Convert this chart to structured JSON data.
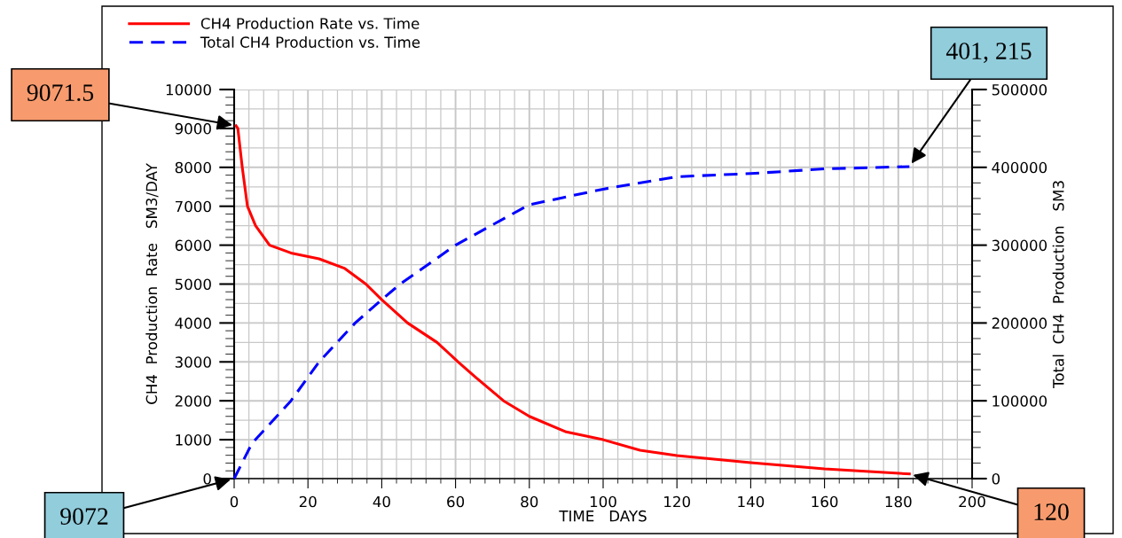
{
  "chart_data": {
    "type": "line",
    "xlabel": "TIME   DAYS",
    "ylabel": "CH4  Production  Rate   SM3/DAY",
    "y2label": "Total  CH4  Production   SM3",
    "xlim": [
      0,
      200
    ],
    "xticks": [
      0,
      20,
      40,
      60,
      80,
      100,
      120,
      140,
      160,
      180,
      200
    ],
    "ylim": [
      0,
      10000
    ],
    "yticks": [
      0,
      1000,
      2000,
      3000,
      4000,
      5000,
      6000,
      7000,
      8000,
      9000,
      10000
    ],
    "y2lim": [
      0,
      500000
    ],
    "y2ticks": [
      0,
      100000,
      200000,
      300000,
      400000,
      500000
    ],
    "grid": true,
    "legend": "top left",
    "marker": "none",
    "series": [
      {
        "name": "CH4 Production Rate vs. Time",
        "color": "#ff0000",
        "line_style": "solid",
        "x": [
          0.5,
          1,
          2.2,
          3.6,
          5.8,
          9.6,
          15.4,
          23,
          30,
          35.7,
          40,
          47,
          55,
          60.7,
          65.5,
          73,
          80,
          90,
          100,
          110,
          120,
          140,
          160,
          183
        ],
        "values": [
          9070,
          9000,
          8000,
          7000,
          6500,
          6000,
          5800,
          5650,
          5400,
          5000,
          4600,
          4000,
          3500,
          3000,
          2600,
          2000,
          1600,
          1200,
          1000,
          730,
          590,
          410,
          250,
          120
        ]
      },
      {
        "name": "Total CH4 Production vs. Time",
        "color": "#0000ff",
        "line_style": "dashed",
        "axis": "y2",
        "x": [
          0,
          4.8,
          15.4,
          23,
          32.8,
          40,
          45,
          60,
          80,
          100,
          120,
          140,
          160,
          183
        ],
        "values": [
          0,
          45000,
          100000,
          150000,
          200000,
          230000,
          250000,
          300000,
          352000,
          372000,
          388000,
          392000,
          398000,
          401000
        ]
      }
    ],
    "annotations": [
      {
        "text": "9071.5",
        "x": 0.5,
        "y": 9070
      },
      {
        "text": "9072",
        "x": 0,
        "y": 0
      },
      {
        "text": "401, 215",
        "x": 183,
        "y": 8020
      },
      {
        "text": "120",
        "x": 183,
        "y": 120
      }
    ]
  }
}
